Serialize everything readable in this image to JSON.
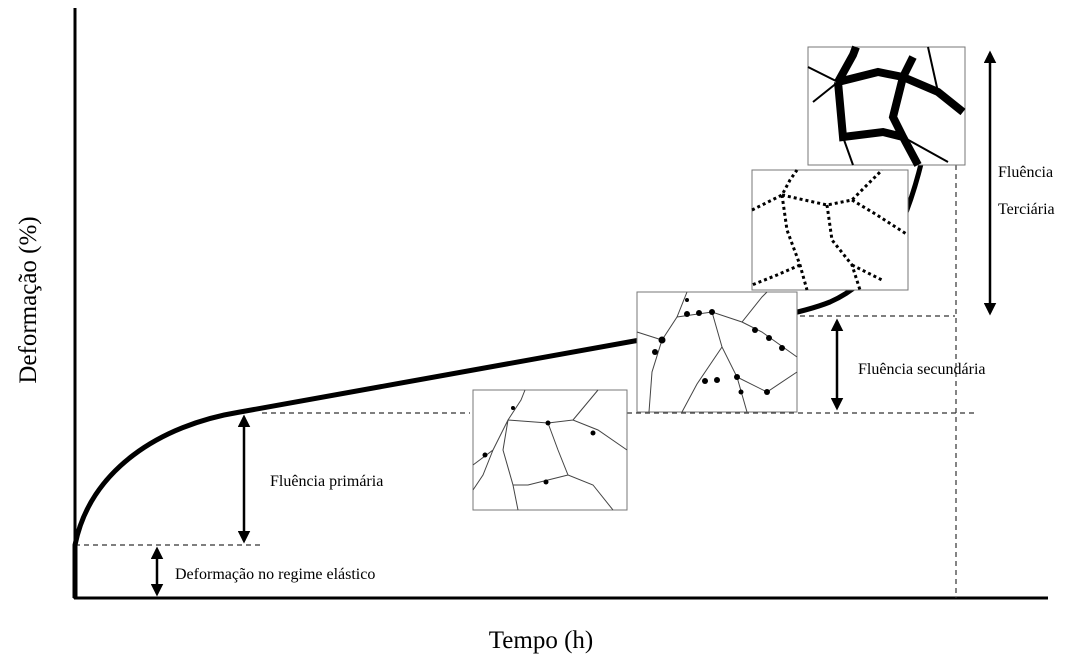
{
  "axes": {
    "x_label": "Tempo (h)",
    "y_label": "Deformação (%)"
  },
  "stages": {
    "elastic": "Deformação no regime elástico",
    "primary": "Fluência primária",
    "secondary": "Fluência secundária",
    "tertiary": [
      "Fluência",
      "Terciária"
    ]
  }
}
